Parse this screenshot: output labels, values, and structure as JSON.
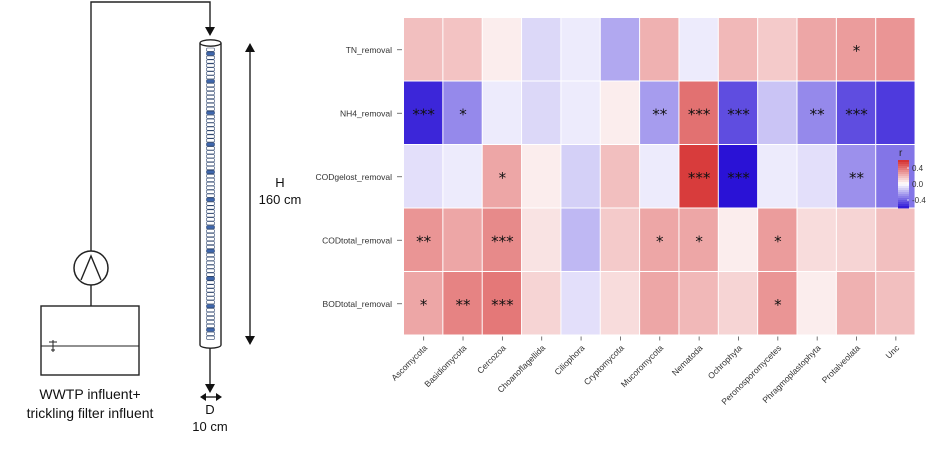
{
  "schematic": {
    "tank_label_line1": "WWTP influent+",
    "tank_label_line2": "trickling filter influent",
    "height_symbol": "H",
    "height_value": "160 cm",
    "diameter_symbol": "D",
    "diameter_value": "10 cm",
    "filter_pieces": [
      "white",
      "blue",
      "white",
      "white",
      "white",
      "white",
      "white",
      "white",
      "blue",
      "white",
      "white",
      "white",
      "white",
      "white",
      "white",
      "white",
      "blue",
      "white",
      "white",
      "white",
      "white",
      "white",
      "white",
      "white",
      "blue",
      "white",
      "white",
      "white",
      "white",
      "white",
      "white",
      "blue",
      "white",
      "white",
      "white",
      "white",
      "white",
      "white",
      "blue",
      "white",
      "white",
      "white",
      "white",
      "white",
      "white",
      "blue",
      "white",
      "white",
      "white",
      "white",
      "white",
      "blue",
      "white",
      "white",
      "white",
      "white",
      "white",
      "white",
      "blue",
      "white",
      "white",
      "white",
      "white",
      "white",
      "white",
      "blue",
      "white",
      "white",
      "white",
      "white",
      "white",
      "blue",
      "white",
      "white"
    ]
  },
  "chart_data": {
    "type": "heatmap",
    "rows": [
      "TN_removal",
      "NH4_removal",
      "CODgelost_removal",
      "CODtotal_removal",
      "BODtotal_removal"
    ],
    "columns": [
      "Ascomycota",
      "Basidiomycota",
      "Cercozoa",
      "Choanoflagellida",
      "Ciliophora",
      "Cryptomycota",
      "Mucoromycota",
      "Nematoda",
      "Ochrophyta",
      "Peronosporomycetes",
      "Phragmoplastophyta",
      "Protalveolata",
      "Unc"
    ],
    "values": [
      [
        0.18,
        0.17,
        0.05,
        -0.1,
        -0.05,
        -0.22,
        0.22,
        -0.05,
        0.2,
        0.15,
        0.25,
        0.28,
        0.3
      ],
      [
        -0.55,
        -0.3,
        -0.05,
        -0.1,
        -0.05,
        0.05,
        -0.25,
        0.4,
        -0.45,
        -0.15,
        -0.3,
        -0.45,
        -0.5
      ],
      [
        -0.08,
        -0.05,
        0.25,
        0.05,
        -0.12,
        0.18,
        -0.05,
        0.55,
        -0.6,
        -0.05,
        -0.08,
        -0.28,
        -0.35
      ],
      [
        0.3,
        0.25,
        0.33,
        0.08,
        -0.18,
        0.15,
        0.25,
        0.25,
        0.05,
        0.28,
        0.1,
        0.12,
        0.18
      ],
      [
        0.25,
        0.35,
        0.38,
        0.12,
        -0.08,
        0.1,
        0.25,
        0.2,
        0.12,
        0.3,
        0.05,
        0.22,
        0.18
      ]
    ],
    "significance": [
      [
        "",
        "",
        "",
        "",
        "",
        "",
        "",
        "",
        "",
        "",
        "",
        "*",
        ""
      ],
      [
        "***",
        "*",
        "",
        "",
        "",
        "",
        "**",
        "***",
        "***",
        "",
        "**",
        "***",
        ""
      ],
      [
        "",
        "",
        "*",
        "",
        "",
        "",
        "",
        "***",
        "***",
        "",
        "",
        "**",
        ""
      ],
      [
        "**",
        "",
        "***",
        "",
        "",
        "",
        "*",
        "*",
        "",
        "*",
        "",
        "",
        ""
      ],
      [
        "*",
        "**",
        "***",
        "",
        "",
        "",
        "",
        "",
        "",
        "*",
        "",
        "",
        ""
      ]
    ],
    "legend": {
      "title": "r",
      "ticks": [
        0.4,
        0.0,
        -0.4
      ],
      "tick_labels": [
        "0.4",
        "0.0",
        "-0.4"
      ],
      "range": [
        -0.6,
        0.6
      ]
    },
    "colors": {
      "low": "#2a12d6",
      "mid": "#ffffff",
      "high": "#d42a2a"
    }
  }
}
